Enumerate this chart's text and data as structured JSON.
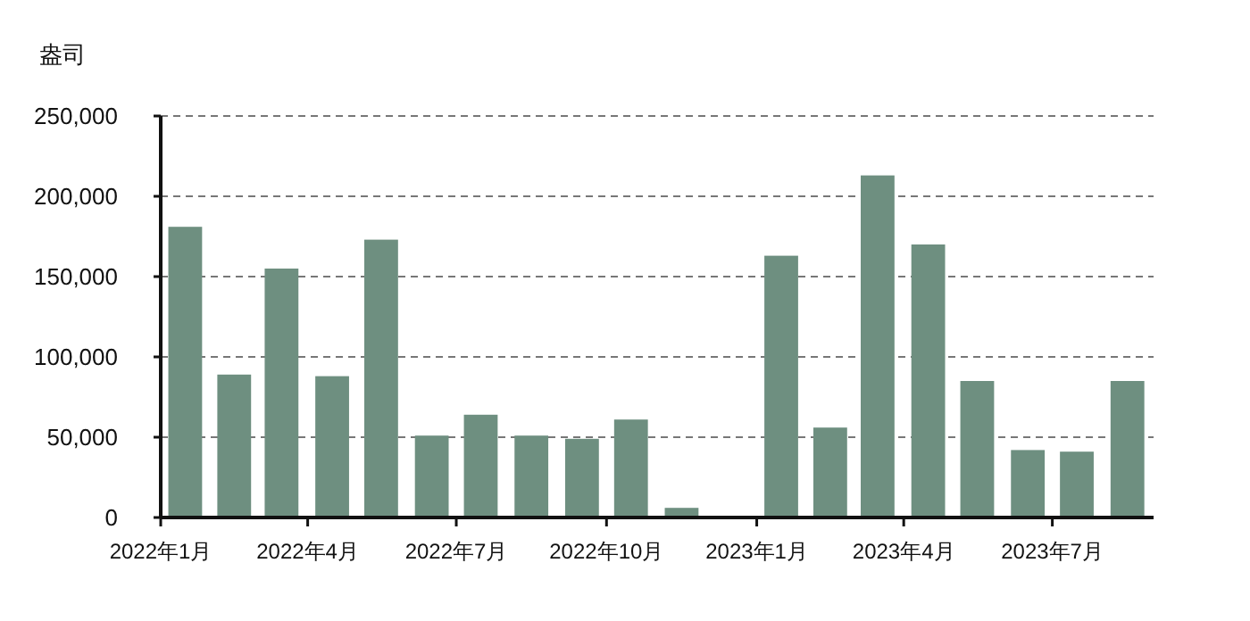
{
  "chart_data": {
    "type": "bar",
    "ylabel": "盎司",
    "color": "#6e8f80",
    "x": [
      "2022-01-16",
      "2022-02-15",
      "2022-03-16",
      "2022-04-16",
      "2022-05-16",
      "2022-06-16",
      "2022-07-16",
      "2022-08-16",
      "2022-09-16",
      "2022-10-16",
      "2022-11-16",
      "2022-12-16",
      "2023-01-16",
      "2023-02-15",
      "2023-03-16",
      "2023-04-16",
      "2023-05-16",
      "2023-06-16",
      "2023-07-16",
      "2023-08-16"
    ],
    "values": [
      181000,
      89000,
      155000,
      88000,
      173000,
      51000,
      64000,
      51000,
      49000,
      61000,
      6000,
      null,
      163000,
      56000,
      213000,
      170000,
      85000,
      42000,
      41000,
      85000
    ],
    "xlim": [
      "2022-01",
      "2023-09"
    ],
    "xticks": [
      {
        "value": "2022-01",
        "label": "2022年1月"
      },
      {
        "value": "2022-04",
        "label": "2022年4月"
      },
      {
        "value": "2022-07",
        "label": "2022年7月"
      },
      {
        "value": "2022-10",
        "label": "2022年10月"
      },
      {
        "value": "2023-01",
        "label": "2023年1月"
      },
      {
        "value": "2023-04",
        "label": "2023年4月"
      },
      {
        "value": "2023-07",
        "label": "2023年7月"
      }
    ],
    "ylim": [
      0,
      250000
    ],
    "yticks": [
      {
        "value": 0,
        "label": "0"
      },
      {
        "value": 50000,
        "label": "50,000"
      },
      {
        "value": 100000,
        "label": "100,000"
      },
      {
        "value": 150000,
        "label": "150,000"
      },
      {
        "value": 200000,
        "label": "200,000"
      },
      {
        "value": 250000,
        "label": "250,000"
      }
    ],
    "grid": "y"
  }
}
